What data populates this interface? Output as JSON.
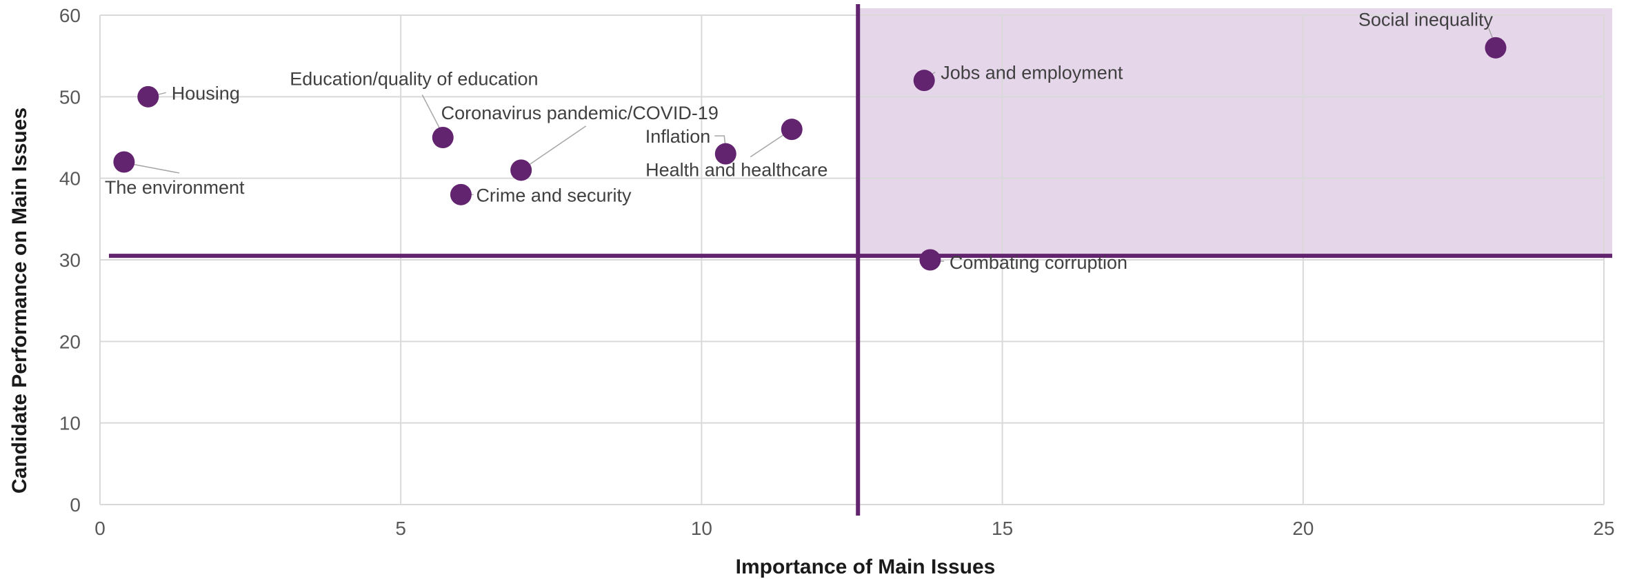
{
  "chart_data": {
    "type": "scatter",
    "title": "",
    "xlabel": "Importance of Main Issues",
    "ylabel": "Candidate Performance on Main Issues",
    "xlim": [
      0,
      25
    ],
    "ylim": [
      0,
      60
    ],
    "x_ticks": [
      0,
      5,
      10,
      15,
      20,
      25
    ],
    "y_ticks": [
      0,
      10,
      20,
      30,
      40,
      50,
      60
    ],
    "grid": true,
    "legend": "none",
    "reference_lines": {
      "x": 12.6,
      "y": 30.5
    },
    "highlight_region": {
      "x_from": 12.6,
      "x_to": 25,
      "y_from": 30.5,
      "y_to": 60
    },
    "colors": {
      "points": "#63246f",
      "reference": "#63246f",
      "highlight": "#e5d6ea"
    },
    "points": [
      {
        "label": "Housing",
        "x": 0.8,
        "y": 50
      },
      {
        "label": "The environment",
        "x": 0.4,
        "y": 42
      },
      {
        "label": "Education/quality of education",
        "x": 5.7,
        "y": 45
      },
      {
        "label": "Crime and security",
        "x": 6.0,
        "y": 38
      },
      {
        "label": "Coronavirus pandemic/COVID-19",
        "x": 7.0,
        "y": 41
      },
      {
        "label": "Inflation",
        "x": 10.4,
        "y": 43
      },
      {
        "label": "Health and healthcare",
        "x": 11.5,
        "y": 46
      },
      {
        "label": "Jobs and employment",
        "x": 13.7,
        "y": 52
      },
      {
        "label": "Combating corruption",
        "x": 13.8,
        "y": 30
      },
      {
        "label": "Social inequality",
        "x": 23.2,
        "y": 56
      }
    ]
  }
}
